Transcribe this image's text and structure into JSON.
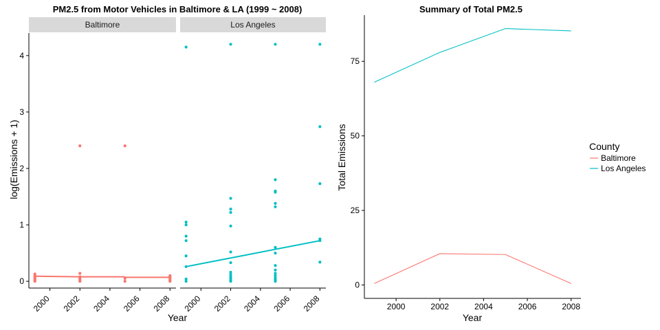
{
  "colors": {
    "baltimore": "#F8766D",
    "los_angeles": "#00BFC4",
    "strip": "#D9D9D9"
  },
  "chart_data": [
    {
      "type": "scatter",
      "title": "PM2.5 from Motor Vehicles in Baltimore & LA (1999 ~ 2008)",
      "xlabel": "Year",
      "ylabel": "log(Emissions + 1)",
      "xlim": [
        1998.6,
        2008.4
      ],
      "ylim": [
        -0.12,
        4.4
      ],
      "x_ticks": [
        2000,
        2002,
        2004,
        2006,
        2008
      ],
      "x_tick_labels": [
        "2000",
        "2002",
        "2004",
        "2006",
        "2008"
      ],
      "y_ticks": [
        0,
        1,
        2,
        3,
        4
      ],
      "y_tick_labels": [
        "0",
        "1",
        "2",
        "3",
        "4"
      ],
      "grid": false,
      "facets": [
        {
          "name": "Baltimore",
          "color_key": "baltimore",
          "points": [
            [
              1999,
              0.0
            ],
            [
              1999,
              0.02
            ],
            [
              1999,
              0.04
            ],
            [
              1999,
              0.06
            ],
            [
              1999,
              0.08
            ],
            [
              1999,
              0.1
            ],
            [
              1999,
              0.13
            ],
            [
              2002,
              0.0
            ],
            [
              2002,
              0.02
            ],
            [
              2002,
              0.04
            ],
            [
              2002,
              0.06
            ],
            [
              2002,
              0.08
            ],
            [
              2002,
              0.14
            ],
            [
              2002,
              2.4
            ],
            [
              2005,
              0.0
            ],
            [
              2005,
              0.05
            ],
            [
              2005,
              2.4
            ],
            [
              2008,
              0.0
            ],
            [
              2008,
              0.02
            ],
            [
              2008,
              0.04
            ],
            [
              2008,
              0.06
            ],
            [
              2008,
              0.08
            ],
            [
              2008,
              0.1
            ]
          ],
          "trend": [
            {
              "x": [
                1999,
                2002
              ],
              "y": [
                0.09,
                0.08
              ]
            },
            {
              "x": [
                2002,
                2005
              ],
              "y": [
                0.08,
                0.08
              ]
            },
            {
              "x": [
                2005,
                2008
              ],
              "y": [
                0.07,
                0.07
              ]
            }
          ]
        },
        {
          "name": "Los Angeles",
          "color_key": "los_angeles",
          "points": [
            [
              1999,
              0.0
            ],
            [
              1999,
              0.04
            ],
            [
              1999,
              0.26
            ],
            [
              1999,
              0.45
            ],
            [
              1999,
              0.72
            ],
            [
              1999,
              0.8
            ],
            [
              1999,
              1.0
            ],
            [
              1999,
              1.05
            ],
            [
              1999,
              4.15
            ],
            [
              2002,
              0.0
            ],
            [
              2002,
              0.02
            ],
            [
              2002,
              0.05
            ],
            [
              2002,
              0.08
            ],
            [
              2002,
              0.12
            ],
            [
              2002,
              0.16
            ],
            [
              2002,
              0.33
            ],
            [
              2002,
              0.52
            ],
            [
              2002,
              0.98
            ],
            [
              2002,
              1.22
            ],
            [
              2002,
              1.28
            ],
            [
              2002,
              1.47
            ],
            [
              2002,
              4.2
            ],
            [
              2005,
              0.0
            ],
            [
              2005,
              0.03
            ],
            [
              2005,
              0.06
            ],
            [
              2005,
              0.1
            ],
            [
              2005,
              0.14
            ],
            [
              2005,
              0.2
            ],
            [
              2005,
              0.28
            ],
            [
              2005,
              0.5
            ],
            [
              2005,
              0.6
            ],
            [
              2005,
              1.32
            ],
            [
              2005,
              1.38
            ],
            [
              2005,
              1.58
            ],
            [
              2005,
              1.6
            ],
            [
              2005,
              1.8
            ],
            [
              2005,
              4.2
            ],
            [
              2008,
              0.34
            ],
            [
              2008,
              0.72
            ],
            [
              2008,
              0.75
            ],
            [
              2008,
              1.73
            ],
            [
              2008,
              2.74
            ],
            [
              2008,
              4.2
            ]
          ],
          "trend": [
            {
              "x": [
                1999,
                2008
              ],
              "y": [
                0.26,
                0.72
              ]
            }
          ]
        }
      ]
    },
    {
      "type": "line",
      "title": "Summary of Total PM2.5",
      "xlabel": "Year",
      "ylabel": "Total Emissions",
      "xlim": [
        1998.55,
        2008.45
      ],
      "ylim": [
        -4.5,
        90.5
      ],
      "x_ticks": [
        2000,
        2002,
        2004,
        2006,
        2008
      ],
      "x_tick_labels": [
        "2000",
        "2002",
        "2004",
        "2006",
        "2008"
      ],
      "y_ticks": [
        0,
        25,
        50,
        75
      ],
      "y_tick_labels": [
        "0",
        "25",
        "50",
        "75"
      ],
      "grid": false,
      "x": [
        1999,
        2002,
        2005,
        2008
      ],
      "series": [
        {
          "name": "Baltimore",
          "color_key": "baltimore",
          "values": [
            0.5,
            10.5,
            10.2,
            0.5
          ]
        },
        {
          "name": "Los Angeles",
          "color_key": "los_angeles",
          "values": [
            68,
            78,
            86,
            85.2
          ]
        }
      ],
      "legend": {
        "title": "County",
        "position": "right"
      }
    }
  ]
}
